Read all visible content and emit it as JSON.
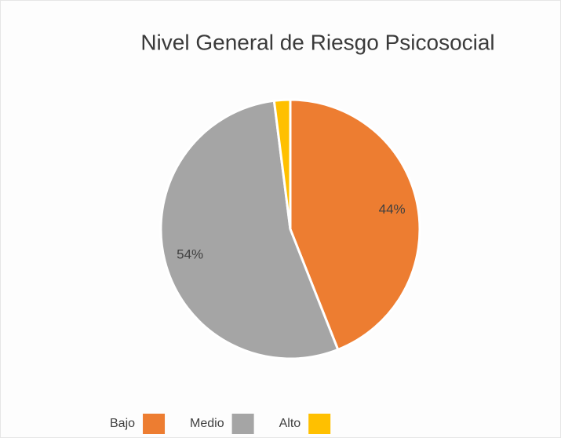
{
  "chart_data": {
    "type": "pie",
    "title": "Nivel General de Riesgo Psicosocial",
    "categories": [
      "Bajo",
      "Medio",
      "Alto"
    ],
    "values": [
      44,
      54,
      2
    ],
    "value_labels": [
      "44%",
      "54%",
      null
    ],
    "colors": [
      "#ed7d31",
      "#a5a5a5",
      "#ffc000"
    ],
    "legend": "bottom"
  }
}
